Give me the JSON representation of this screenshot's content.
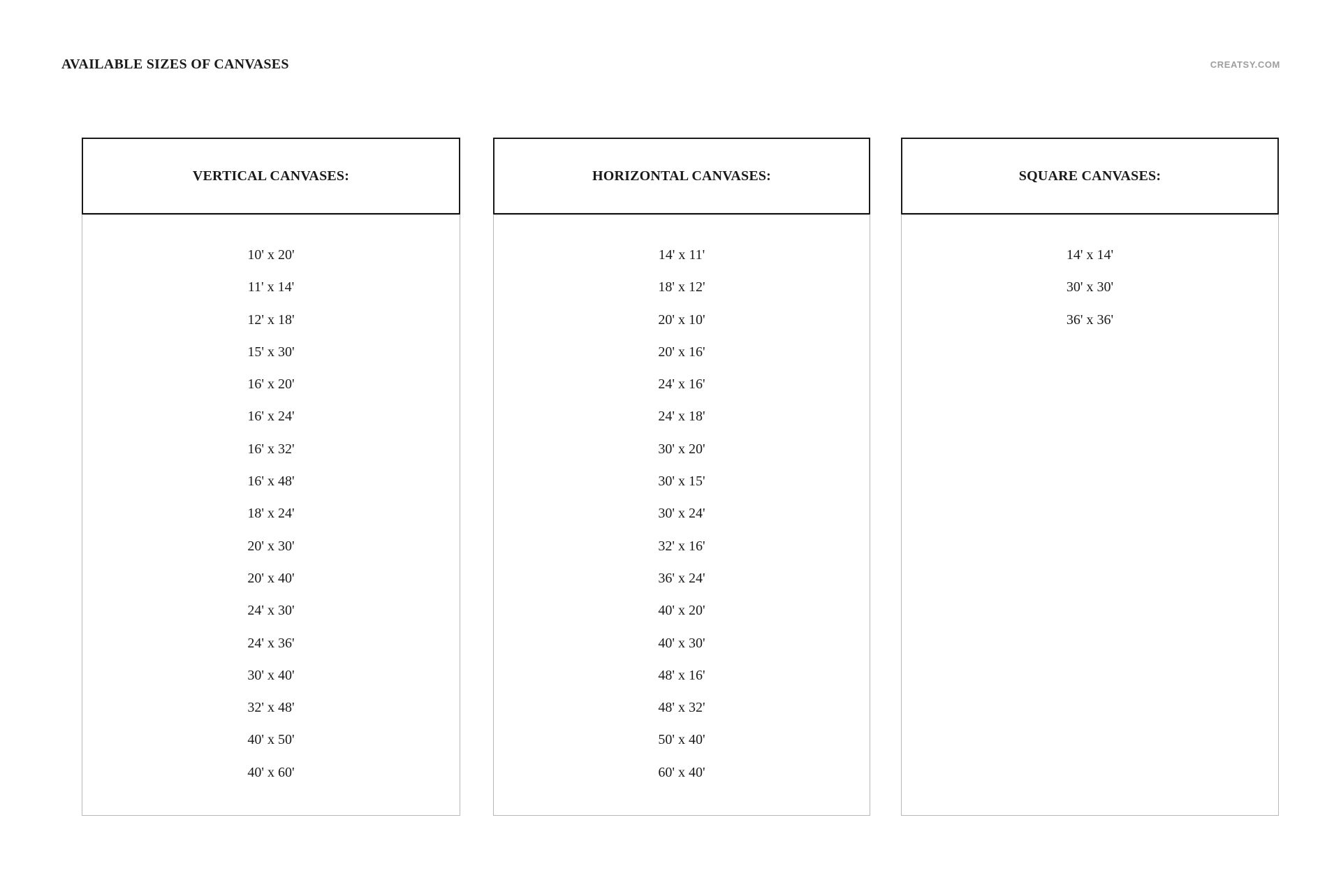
{
  "page": {
    "title": "AVAILABLE SIZES OF CANVASES",
    "brand": "CREATSY.COM"
  },
  "colors": {
    "ink": "#1a1a1a",
    "header_border": "#1a1a1a",
    "list_border": "#b8b8b8",
    "brand_color": "#9e9e9e",
    "page_bg": "#ffffff"
  },
  "columns": [
    {
      "id": "vertical",
      "header": "VERTICAL CANVASES:",
      "sizes": [
        "10' x 20'",
        "11' x 14'",
        "12' x 18'",
        "15' x 30'",
        "16' x 20'",
        "16' x 24'",
        "16' x 32'",
        "16' x 48'",
        "18' x 24'",
        "20' x 30'",
        "20' x 40'",
        "24' x 30'",
        "24' x 36'",
        "30' x 40'",
        "32' x 48'",
        "40' x 50'",
        "40' x 60'"
      ]
    },
    {
      "id": "horizontal",
      "header": "HORIZONTAL CANVASES:",
      "sizes": [
        "14' x 11'",
        "18' x 12'",
        "20' x 10'",
        "20' x 16'",
        "24' x 16'",
        "24' x 18'",
        "30' x 20'",
        "30' x 15'",
        "30' x 24'",
        "32' x 16'",
        "36' x 24'",
        "40' x 20'",
        "40' x 30'",
        "48' x 16'",
        "48' x 32'",
        "50' x 40'",
        "60' x 40'"
      ]
    },
    {
      "id": "square",
      "header": "SQUARE CANVASES:",
      "sizes": [
        "14' x 14'",
        "30' x 30'",
        "36' x 36'"
      ]
    }
  ]
}
